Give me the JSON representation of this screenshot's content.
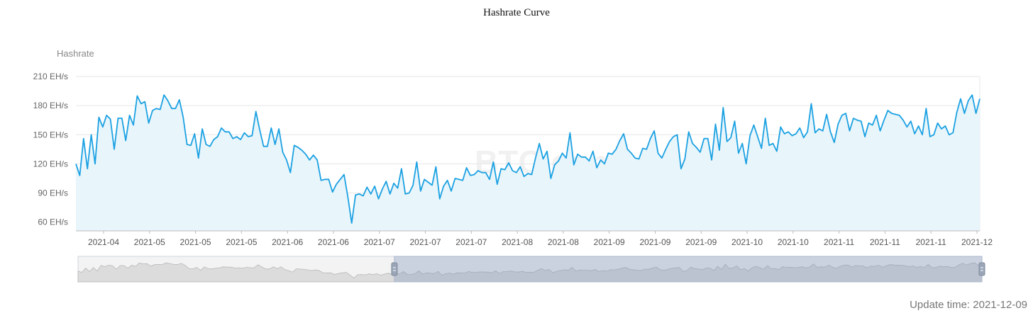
{
  "chart_data": {
    "type": "area",
    "title": "Hashrate Curve",
    "ylabel": "Hashrate",
    "xlabel": "",
    "y_unit": " EH/s",
    "y_ticks": [
      60,
      90,
      120,
      150,
      180,
      210
    ],
    "ylim": [
      51,
      210
    ],
    "x_tick_labels": [
      "2021-04",
      "2021-05",
      "2021-05",
      "2021-05",
      "2021-06",
      "2021-06",
      "2021-07",
      "2021-07",
      "2021-07",
      "2021-08",
      "2021-08",
      "2021-09",
      "2021-09",
      "2021-09",
      "2021-10",
      "2021-10",
      "2021-11",
      "2021-11",
      "2021-11",
      "2021-12"
    ],
    "grid": true,
    "legend": "none",
    "watermark": "BTC.com",
    "colors": {
      "line": "#1ba1e2",
      "area": "#e8f5fb",
      "grid": "#e6e6e6"
    },
    "values": [
      120,
      108,
      146,
      115,
      150,
      120,
      168,
      158,
      170,
      166,
      135,
      167,
      167,
      144,
      170,
      160,
      190,
      182,
      184,
      162,
      175,
      177,
      176,
      191,
      185,
      177,
      177,
      186,
      168,
      140,
      139,
      151,
      126,
      156,
      140,
      138,
      145,
      148,
      157,
      153,
      153,
      146,
      148,
      145,
      152,
      148,
      149,
      174,
      155,
      138,
      138,
      157,
      140,
      156,
      132,
      124,
      111,
      139,
      137,
      134,
      130,
      124,
      129,
      124,
      103,
      104,
      104,
      91,
      99,
      104,
      109,
      86,
      59,
      88,
      89,
      87,
      96,
      89,
      97,
      84,
      94,
      102,
      89,
      100,
      95,
      115,
      89,
      90,
      98,
      122,
      92,
      104,
      101,
      98,
      117,
      84,
      97,
      103,
      92,
      105,
      104,
      103,
      116,
      108,
      109,
      113,
      111,
      111,
      104,
      122,
      99,
      115,
      114,
      121,
      113,
      111,
      117,
      107,
      110,
      109,
      126,
      141,
      125,
      133,
      105,
      119,
      123,
      131,
      126,
      152,
      119,
      130,
      127,
      127,
      123,
      133,
      116,
      124,
      120,
      131,
      130,
      135,
      144,
      151,
      135,
      131,
      126,
      125,
      136,
      135,
      146,
      154,
      131,
      126,
      135,
      143,
      148,
      150,
      115,
      125,
      153,
      141,
      137,
      132,
      146,
      146,
      124,
      161,
      134,
      178,
      143,
      147,
      164,
      131,
      141,
      120,
      149,
      160,
      148,
      136,
      167,
      139,
      141,
      133,
      158,
      151,
      153,
      149,
      151,
      157,
      147,
      153,
      182,
      152,
      156,
      154,
      171,
      153,
      142,
      161,
      170,
      172,
      154,
      167,
      165,
      164,
      148,
      162,
      160,
      170,
      154,
      165,
      175,
      172,
      171,
      170,
      165,
      158,
      164,
      151,
      159,
      150,
      177,
      148,
      150,
      162,
      156,
      159,
      150,
      152,
      173,
      187,
      172,
      185,
      191,
      172,
      187
    ],
    "dataZoom": {
      "start_fraction": 0.35,
      "end_fraction": 1.0
    }
  },
  "footer": {
    "update_time": "Update time: 2021-12-09"
  }
}
